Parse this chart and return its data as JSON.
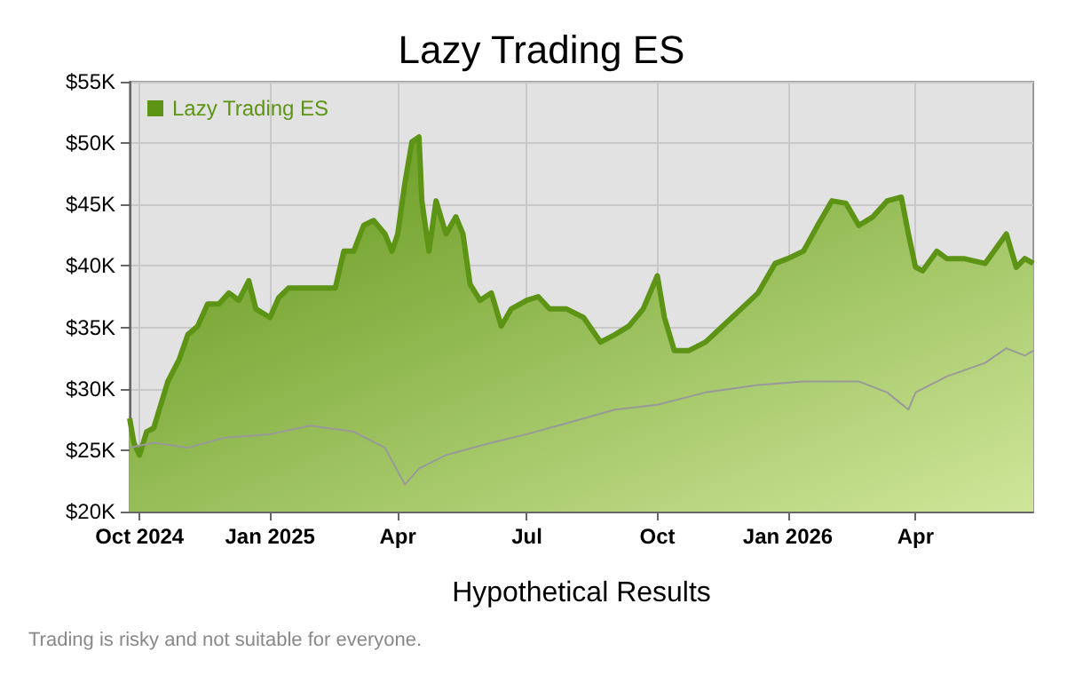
{
  "chart_data": {
    "type": "line",
    "title": "Lazy Trading ES",
    "xlabel": "Hypothetical Results",
    "annotations": [
      "Trading is risky and not suitable for everyone."
    ],
    "series": [
      {
        "name": "Lazy Trading ES",
        "type": "area",
        "color": "#5e9416",
        "x": [
          "2024-09-24",
          "2024-09-27",
          "2024-10-01",
          "2024-10-06",
          "2024-10-11",
          "2024-10-16",
          "2024-10-21",
          "2024-10-29",
          "2024-11-04",
          "2024-11-11",
          "2024-11-18",
          "2024-11-26",
          "2024-12-03",
          "2024-12-10",
          "2024-12-17",
          "2024-12-22",
          "2025-01-01",
          "2025-01-07",
          "2025-01-14",
          "2025-01-29",
          "2025-02-10",
          "2025-02-16",
          "2025-02-22",
          "2025-03-01",
          "2025-03-08",
          "2025-03-15",
          "2025-03-23",
          "2025-03-28",
          "2025-04-01",
          "2025-04-06",
          "2025-04-11",
          "2025-04-16",
          "2025-04-18",
          "2025-04-23",
          "2025-04-28",
          "2025-05-05",
          "2025-05-12",
          "2025-05-17",
          "2025-05-22",
          "2025-05-29",
          "2025-06-06",
          "2025-06-13",
          "2025-06-20",
          "2025-07-01",
          "2025-07-09",
          "2025-07-17",
          "2025-07-29",
          "2025-08-10",
          "2025-08-22",
          "2025-09-01",
          "2025-09-11",
          "2025-09-21",
          "2025-10-01",
          "2025-10-06",
          "2025-10-13",
          "2025-10-23",
          "2025-11-04",
          "2025-11-16",
          "2025-11-29",
          "2025-12-11",
          "2025-12-23",
          "2026-01-01",
          "2026-01-12",
          "2026-01-22",
          "2026-02-01",
          "2026-02-11",
          "2026-02-20",
          "2026-03-02",
          "2026-03-12",
          "2026-03-22",
          "2026-03-27",
          "2026-04-01",
          "2026-04-06",
          "2026-04-16",
          "2026-04-23",
          "2026-05-05",
          "2026-05-20",
          "2026-06-04",
          "2026-06-11",
          "2026-06-17",
          "2026-06-23"
        ],
        "values": [
          27600,
          25600,
          24600,
          26500,
          26800,
          28700,
          30600,
          32400,
          34400,
          35100,
          36900,
          36900,
          37800,
          37200,
          38800,
          36500,
          35800,
          37400,
          38200,
          38200,
          38200,
          38200,
          41200,
          41200,
          43300,
          43700,
          42600,
          41200,
          42600,
          46700,
          50100,
          50500,
          45300,
          41200,
          45300,
          42600,
          44000,
          42600,
          38500,
          37200,
          37800,
          35100,
          36500,
          37200,
          37500,
          36500,
          36500,
          35800,
          33800,
          34400,
          35100,
          36500,
          39200,
          35800,
          33100,
          33100,
          33800,
          35100,
          36500,
          37800,
          40200,
          40600,
          41200,
          43300,
          45300,
          45100,
          43300,
          44000,
          45300,
          45600,
          42600,
          39900,
          39600,
          41200,
          40600,
          40600,
          40200,
          42600,
          39900,
          40600,
          40200
        ]
      },
      {
        "color": "#999999",
        "x": [
          "2024-09-24",
          "2024-10-11",
          "2024-11-04",
          "2024-11-29",
          "2025-01-01",
          "2025-01-29",
          "2025-03-01",
          "2025-03-23",
          "2025-04-06",
          "2025-04-16",
          "2025-05-05",
          "2025-06-06",
          "2025-07-01",
          "2025-07-29",
          "2025-09-01",
          "2025-10-01",
          "2025-11-04",
          "2025-12-11",
          "2026-01-12",
          "2026-02-20",
          "2026-03-12",
          "2026-03-27",
          "2026-04-01",
          "2026-04-23",
          "2026-05-20",
          "2026-06-04",
          "2026-06-17",
          "2026-06-23"
        ],
        "values": [
          25200,
          25600,
          25200,
          26000,
          26300,
          27000,
          26500,
          25200,
          22200,
          23500,
          24600,
          25600,
          26300,
          27200,
          28300,
          28700,
          29700,
          30300,
          30600,
          30600,
          29700,
          28300,
          29700,
          31000,
          32100,
          33300,
          32700,
          33100
        ]
      }
    ],
    "xlim": [
      "2024-09-24",
      "2026-06-23"
    ],
    "xticks": [
      {
        "value": "2024-10-01",
        "label": "Oct 2024"
      },
      {
        "value": "2025-01-01",
        "label": "Jan 2025"
      },
      {
        "value": "2025-04-01",
        "label": "Apr"
      },
      {
        "value": "2025-07-01",
        "label": "Jul"
      },
      {
        "value": "2025-10-01",
        "label": "Oct"
      },
      {
        "value": "2026-01-01",
        "label": "Jan 2026"
      },
      {
        "value": "2026-04-01",
        "label": "Apr"
      }
    ],
    "ylim": [
      20000,
      55000
    ],
    "yticks": [
      {
        "value": 20000,
        "label": "$20K"
      },
      {
        "value": 25000,
        "label": "$25K"
      },
      {
        "value": 30000,
        "label": "$30K"
      },
      {
        "value": 35000,
        "label": "$35K"
      },
      {
        "value": 40000,
        "label": "$40K"
      },
      {
        "value": 45000,
        "label": "$45K"
      },
      {
        "value": 50000,
        "label": "$50K"
      },
      {
        "value": 55000,
        "label": "$55K"
      }
    ],
    "grid": true,
    "legend": "top left",
    "marker": "none",
    "line_style": "solid"
  }
}
